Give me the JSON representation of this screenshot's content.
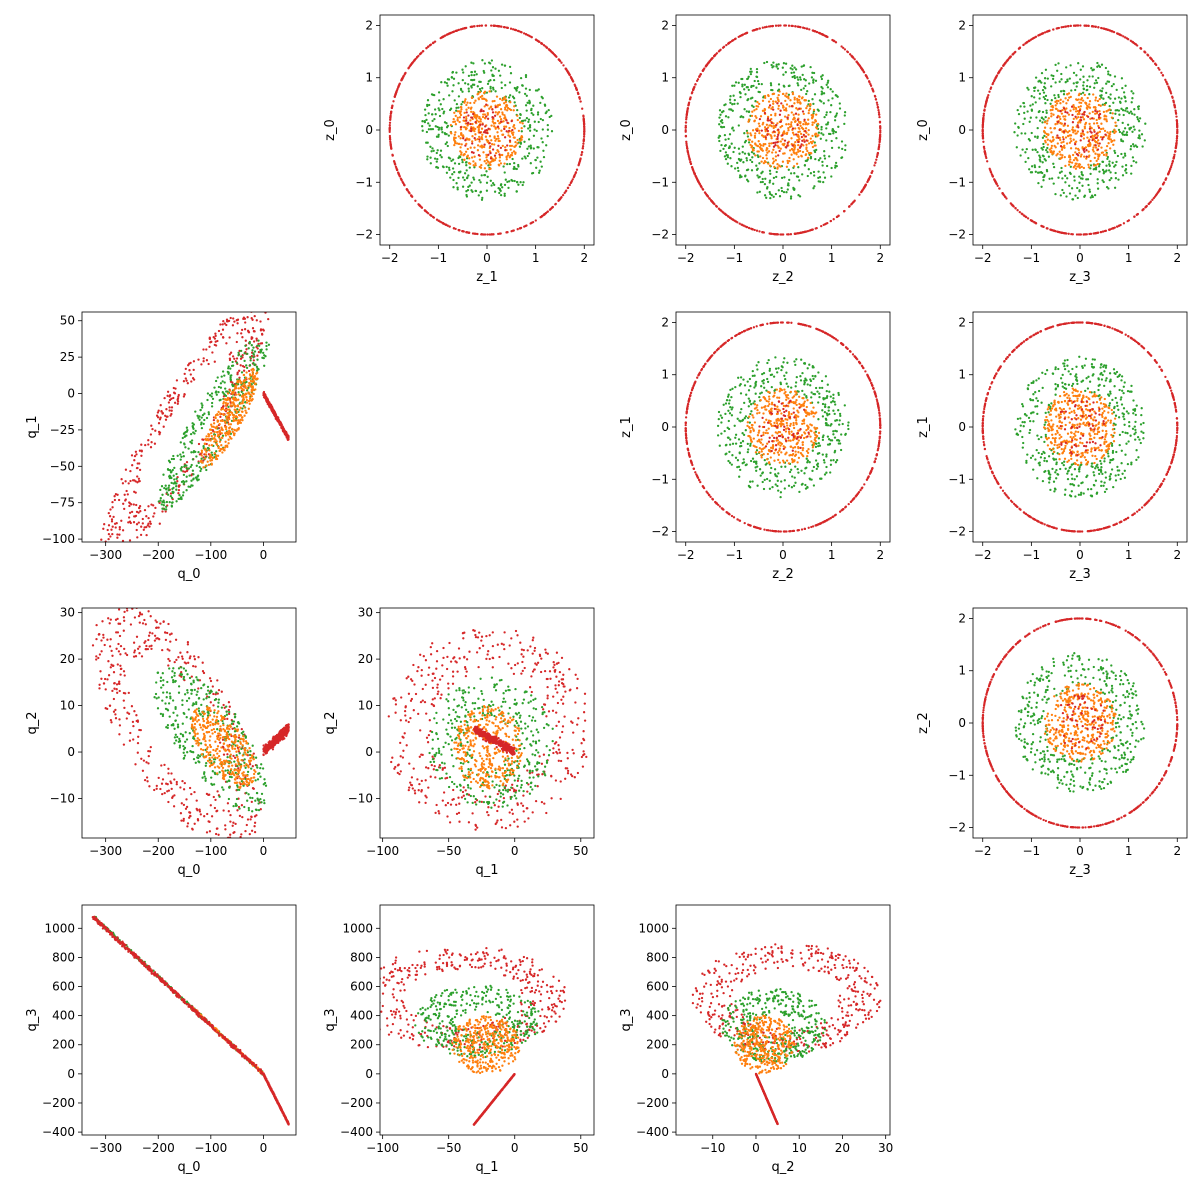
{
  "figure": {
    "colors": {
      "orange": "#ff7f0e",
      "green": "#2ca02c",
      "red": "#d62728",
      "axis": "#000000",
      "background": "#ffffff"
    },
    "marker": "point",
    "grid": false
  },
  "chart_data": [
    {
      "id": "z0_vs_z1",
      "type": "scatter",
      "xlabel": "z_1",
      "ylabel": "z_0",
      "xlim": [
        -2.2,
        2.2
      ],
      "ylim": [
        -2.2,
        2.2
      ],
      "xticks": [
        -2,
        -1,
        0,
        1,
        2
      ],
      "yticks": [
        -2,
        -1,
        0,
        1,
        2
      ],
      "series": [
        {
          "color": "red",
          "shape": "disk",
          "rx": 2.0,
          "ry": 2.0,
          "rmin": 1.0,
          "n": 520,
          "seed": 11
        },
        {
          "color": "green",
          "shape": "disk",
          "rx": 1.35,
          "ry": 1.35,
          "rmin": 0.5,
          "n": 420,
          "seed": 12
        },
        {
          "color": "orange",
          "shape": "disk",
          "rx": 0.75,
          "ry": 0.75,
          "rmin": 0,
          "n": 380,
          "seed": 13
        },
        {
          "color": "red",
          "shape": "disk",
          "rx": 0.55,
          "ry": 0.55,
          "rmin": 0,
          "n": 70,
          "seed": 14
        }
      ]
    },
    {
      "id": "z0_vs_z2",
      "type": "scatter",
      "xlabel": "z_2",
      "ylabel": "z_0",
      "xlim": [
        -2.2,
        2.2
      ],
      "ylim": [
        -2.2,
        2.2
      ],
      "xticks": [
        -2,
        -1,
        0,
        1,
        2
      ],
      "yticks": [
        -2,
        -1,
        0,
        1,
        2
      ],
      "series": [
        {
          "color": "red",
          "shape": "disk",
          "rx": 2.0,
          "ry": 2.0,
          "rmin": 1.0,
          "n": 520,
          "seed": 21
        },
        {
          "color": "green",
          "shape": "disk",
          "rx": 1.35,
          "ry": 1.35,
          "rmin": 0.5,
          "n": 420,
          "seed": 22
        },
        {
          "color": "orange",
          "shape": "disk",
          "rx": 0.75,
          "ry": 0.75,
          "rmin": 0,
          "n": 380,
          "seed": 23
        },
        {
          "color": "red",
          "shape": "disk",
          "rx": 0.55,
          "ry": 0.55,
          "rmin": 0,
          "n": 60,
          "seed": 24
        }
      ]
    },
    {
      "id": "z0_vs_z3",
      "type": "scatter",
      "xlabel": "z_3",
      "ylabel": "z_0",
      "xlim": [
        -2.2,
        2.2
      ],
      "ylim": [
        -2.2,
        2.2
      ],
      "xticks": [
        -2,
        -1,
        0,
        1,
        2
      ],
      "yticks": [
        -2,
        -1,
        0,
        1,
        2
      ],
      "series": [
        {
          "color": "red",
          "shape": "disk",
          "rx": 2.0,
          "ry": 2.0,
          "rmin": 1.0,
          "n": 520,
          "seed": 31
        },
        {
          "color": "green",
          "shape": "disk",
          "rx": 1.35,
          "ry": 1.35,
          "rmin": 0.5,
          "n": 420,
          "seed": 32
        },
        {
          "color": "orange",
          "shape": "disk",
          "rx": 0.75,
          "ry": 0.75,
          "rmin": 0,
          "n": 380,
          "seed": 33
        },
        {
          "color": "red",
          "shape": "disk",
          "rx": 0.55,
          "ry": 0.55,
          "rmin": 0,
          "n": 60,
          "seed": 34
        }
      ]
    },
    {
      "id": "q1_vs_q0",
      "type": "scatter",
      "xlabel": "q_0",
      "ylabel": "q_1",
      "xlim": [
        -345,
        62
      ],
      "ylim": [
        -102,
        56
      ],
      "xticks": [
        -300,
        -200,
        -100,
        0
      ],
      "yticks": [
        -100,
        -75,
        -50,
        -25,
        0,
        25,
        50
      ],
      "series": [
        {
          "color": "red",
          "shape": "ellipse",
          "cx": -150,
          "cy": -25,
          "a": 180,
          "b": 38,
          "angle": 28,
          "rmin": 0.55,
          "n": 460,
          "seed": 41
        },
        {
          "color": "green",
          "shape": "ellipse",
          "cx": -95,
          "cy": -20,
          "a": 120,
          "b": 24,
          "angle": 28,
          "rmin": 0.3,
          "n": 380,
          "seed": 42
        },
        {
          "color": "orange",
          "shape": "ellipse",
          "cx": -65,
          "cy": -17,
          "a": 62,
          "b": 16,
          "angle": 30,
          "rmin": 0,
          "n": 360,
          "seed": 43
        },
        {
          "color": "red",
          "shape": "line",
          "x0": 0,
          "y0": 0,
          "x1": 48,
          "y1": -31,
          "spread": 1.5,
          "n": 380,
          "seed": 44
        }
      ]
    },
    {
      "id": "z1_vs_z2",
      "type": "scatter",
      "xlabel": "z_2",
      "ylabel": "z_1",
      "xlim": [
        -2.2,
        2.2
      ],
      "ylim": [
        -2.2,
        2.2
      ],
      "xticks": [
        -2,
        -1,
        0,
        1,
        2
      ],
      "yticks": [
        -2,
        -1,
        0,
        1,
        2
      ],
      "series": [
        {
          "color": "red",
          "shape": "disk",
          "rx": 2.0,
          "ry": 2.0,
          "rmin": 1.0,
          "n": 520,
          "seed": 51
        },
        {
          "color": "green",
          "shape": "disk",
          "rx": 1.35,
          "ry": 1.35,
          "rmin": 0.5,
          "n": 420,
          "seed": 52
        },
        {
          "color": "orange",
          "shape": "disk",
          "rx": 0.75,
          "ry": 0.75,
          "rmin": 0,
          "n": 380,
          "seed": 53
        },
        {
          "color": "red",
          "shape": "disk",
          "rx": 0.55,
          "ry": 0.55,
          "rmin": 0,
          "n": 60,
          "seed": 54
        }
      ]
    },
    {
      "id": "z1_vs_z3",
      "type": "scatter",
      "xlabel": "z_3",
      "ylabel": "z_1",
      "xlim": [
        -2.2,
        2.2
      ],
      "ylim": [
        -2.2,
        2.2
      ],
      "xticks": [
        -2,
        -1,
        0,
        1,
        2
      ],
      "yticks": [
        -2,
        -1,
        0,
        1,
        2
      ],
      "series": [
        {
          "color": "red",
          "shape": "disk",
          "rx": 2.0,
          "ry": 2.0,
          "rmin": 1.0,
          "n": 520,
          "seed": 61
        },
        {
          "color": "green",
          "shape": "disk",
          "rx": 1.35,
          "ry": 1.35,
          "rmin": 0.5,
          "n": 420,
          "seed": 62
        },
        {
          "color": "orange",
          "shape": "disk",
          "rx": 0.75,
          "ry": 0.75,
          "rmin": 0,
          "n": 380,
          "seed": 63
        },
        {
          "color": "red",
          "shape": "disk",
          "rx": 0.55,
          "ry": 0.55,
          "rmin": 0,
          "n": 60,
          "seed": 64
        }
      ]
    },
    {
      "id": "q2_vs_q0",
      "type": "scatter",
      "xlabel": "q_0",
      "ylabel": "q_2",
      "xlim": [
        -345,
        62
      ],
      "ylim": [
        -18.5,
        31
      ],
      "xticks": [
        -300,
        -200,
        -100,
        0
      ],
      "yticks": [
        -10,
        0,
        10,
        20,
        30
      ],
      "series": [
        {
          "color": "red",
          "shape": "ellipse",
          "cx": -165,
          "cy": 6,
          "a": 165,
          "b": 20,
          "angle": -6,
          "rmin": 0.55,
          "n": 440,
          "seed": 71
        },
        {
          "color": "green",
          "shape": "ellipse",
          "cx": -100,
          "cy": 3,
          "a": 110,
          "b": 11,
          "angle": -6,
          "rmin": 0.3,
          "n": 380,
          "seed": 72
        },
        {
          "color": "orange",
          "shape": "ellipse",
          "cx": -75,
          "cy": 1,
          "a": 62,
          "b": 7,
          "angle": -5,
          "rmin": 0,
          "n": 360,
          "seed": 73
        },
        {
          "color": "red",
          "shape": "line",
          "x0": 0,
          "y0": 0,
          "x1": 48,
          "y1": 5.2,
          "spread": 1.0,
          "n": 380,
          "seed": 74
        }
      ]
    },
    {
      "id": "q2_vs_q1",
      "type": "scatter",
      "xlabel": "q_1",
      "ylabel": "q_2",
      "xlim": [
        -102,
        60
      ],
      "ylim": [
        -18.5,
        31
      ],
      "xticks": [
        -100,
        -50,
        0,
        50
      ],
      "yticks": [
        -10,
        0,
        10,
        20,
        30
      ],
      "series": [
        {
          "color": "red",
          "shape": "ellipse",
          "cx": -20,
          "cy": 5,
          "a": 78,
          "b": 22,
          "angle": 0,
          "rmin": 0.55,
          "n": 440,
          "seed": 81
        },
        {
          "color": "green",
          "shape": "ellipse",
          "cx": -18,
          "cy": 2,
          "a": 48,
          "b": 14,
          "angle": 0,
          "rmin": 0.35,
          "n": 380,
          "seed": 82
        },
        {
          "color": "orange",
          "shape": "ellipse",
          "cx": -20,
          "cy": 1,
          "a": 26,
          "b": 9,
          "angle": 0,
          "rmin": 0,
          "n": 360,
          "seed": 83
        },
        {
          "color": "red",
          "shape": "line",
          "x0": -31,
          "y0": 5,
          "x1": 0,
          "y1": 0,
          "spread": 0.9,
          "n": 380,
          "seed": 84
        }
      ]
    },
    {
      "id": "z2_vs_z3",
      "type": "scatter",
      "xlabel": "z_3",
      "ylabel": "z_2",
      "xlim": [
        -2.2,
        2.2
      ],
      "ylim": [
        -2.2,
        2.2
      ],
      "xticks": [
        -2,
        -1,
        0,
        1,
        2
      ],
      "yticks": [
        -2,
        -1,
        0,
        1,
        2
      ],
      "series": [
        {
          "color": "red",
          "shape": "disk",
          "rx": 2.0,
          "ry": 2.0,
          "rmin": 1.0,
          "n": 520,
          "seed": 91
        },
        {
          "color": "green",
          "shape": "disk",
          "rx": 1.35,
          "ry": 1.35,
          "rmin": 0.5,
          "n": 420,
          "seed": 92
        },
        {
          "color": "orange",
          "shape": "disk",
          "rx": 0.75,
          "ry": 0.75,
          "rmin": 0,
          "n": 380,
          "seed": 93
        },
        {
          "color": "red",
          "shape": "disk",
          "rx": 0.55,
          "ry": 0.55,
          "rmin": 0,
          "n": 60,
          "seed": 94
        }
      ]
    },
    {
      "id": "q3_vs_q0",
      "type": "scatter",
      "xlabel": "q_0",
      "ylabel": "q_3",
      "xlim": [
        -345,
        62
      ],
      "ylim": [
        -420,
        1160
      ],
      "xticks": [
        -300,
        -200,
        -100,
        0
      ],
      "yticks": [
        -400,
        -200,
        0,
        200,
        400,
        600,
        800,
        1000
      ],
      "series": [
        {
          "color": "green",
          "shape": "line",
          "x0": -320,
          "y0": 1070,
          "x1": 0,
          "y1": 0,
          "spread": 12,
          "n": 260,
          "seed": 101
        },
        {
          "color": "orange",
          "shape": "line",
          "x0": -140,
          "y0": 470,
          "x1": 0,
          "y1": 0,
          "spread": 10,
          "n": 200,
          "seed": 102
        },
        {
          "color": "red",
          "shape": "line",
          "x0": -325,
          "y0": 1080,
          "x1": 0,
          "y1": 0,
          "spread": 14,
          "n": 480,
          "seed": 103
        },
        {
          "color": "red",
          "shape": "line",
          "x0": 0,
          "y0": 0,
          "x1": 48,
          "y1": -345,
          "spread": 6,
          "n": 360,
          "seed": 104
        }
      ]
    },
    {
      "id": "q3_vs_q1",
      "type": "scatter",
      "xlabel": "q_1",
      "ylabel": "q_3",
      "xlim": [
        -102,
        60
      ],
      "ylim": [
        -420,
        1160
      ],
      "xticks": [
        -100,
        -50,
        0,
        50
      ],
      "yticks": [
        -400,
        -200,
        0,
        200,
        400,
        600,
        800,
        1000
      ],
      "series": [
        {
          "color": "red",
          "shape": "ellipse",
          "cx": -40,
          "cy": 520,
          "a": 80,
          "b": 360,
          "angle": 0,
          "rmin": 0.55,
          "n": 440,
          "seed": 111
        },
        {
          "color": "green",
          "shape": "ellipse",
          "cx": -28,
          "cy": 360,
          "a": 48,
          "b": 250,
          "angle": 0,
          "rmin": 0.3,
          "n": 380,
          "seed": 112
        },
        {
          "color": "orange",
          "shape": "ellipse",
          "cx": -22,
          "cy": 200,
          "a": 26,
          "b": 200,
          "angle": 0,
          "rmin": 0,
          "n": 360,
          "seed": 113
        },
        {
          "color": "red",
          "shape": "line",
          "x0": -31,
          "y0": -350,
          "x1": 0,
          "y1": 0,
          "spread": 1.8,
          "n": 380,
          "seed": 114
        }
      ]
    },
    {
      "id": "q3_vs_q2",
      "type": "scatter",
      "xlabel": "q_2",
      "ylabel": "q_3",
      "xlim": [
        -18.5,
        31
      ],
      "ylim": [
        -420,
        1160
      ],
      "xticks": [
        -10,
        0,
        10,
        20,
        30
      ],
      "yticks": [
        -400,
        -200,
        0,
        200,
        400,
        600,
        800,
        1000
      ],
      "series": [
        {
          "color": "red",
          "shape": "ellipse",
          "cx": 7,
          "cy": 520,
          "a": 22,
          "b": 380,
          "angle": 0,
          "rmin": 0.55,
          "n": 440,
          "seed": 121
        },
        {
          "color": "green",
          "shape": "ellipse",
          "cx": 4,
          "cy": 330,
          "a": 12,
          "b": 260,
          "angle": 0,
          "rmin": 0.3,
          "n": 380,
          "seed": 122
        },
        {
          "color": "orange",
          "shape": "ellipse",
          "cx": 2,
          "cy": 200,
          "a": 7,
          "b": 200,
          "angle": 0,
          "rmin": 0,
          "n": 360,
          "seed": 123
        },
        {
          "color": "red",
          "shape": "line",
          "x0": 0,
          "y0": 0,
          "x1": 5,
          "y1": -345,
          "spread": 0.6,
          "n": 380,
          "seed": 124
        }
      ]
    }
  ]
}
